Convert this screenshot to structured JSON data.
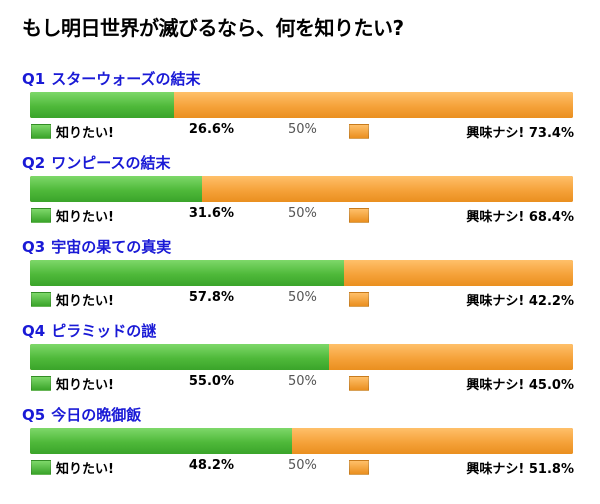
{
  "title": "もし明日世界が滅びるなら、何を知りたい?",
  "legend": {
    "yes_label": "知りたい!",
    "no_label": "興味ナシ!",
    "midpoint": "50%"
  },
  "colors": {
    "yes": "#4fb93a",
    "no": "#f5a23a",
    "question": "#1a1ad6"
  },
  "polls": [
    {
      "qid": "Q1",
      "question": "スターウォーズの結末",
      "yes_text": "26.6%",
      "no_text": "73.4%"
    },
    {
      "qid": "Q2",
      "question": "ワンピースの結末",
      "yes_text": "31.6%",
      "no_text": "68.4%"
    },
    {
      "qid": "Q3",
      "question": "宇宙の果ての真実",
      "yes_text": "57.8%",
      "no_text": "42.2%"
    },
    {
      "qid": "Q4",
      "question": "ピラミッドの謎",
      "yes_text": "55.0%",
      "no_text": "45.0%"
    },
    {
      "qid": "Q5",
      "question": "今日の晩御飯",
      "yes_text": "48.2%",
      "no_text": "51.8%"
    }
  ],
  "chart_data": {
    "type": "bar",
    "orientation": "horizontal-stacked-100",
    "title": "もし明日世界が滅びるなら、何を知りたい?",
    "categories": [
      "スターウォーズの結末",
      "ワンピースの結末",
      "宇宙の果ての真実",
      "ピラミッドの謎",
      "今日の晩御飯"
    ],
    "series": [
      {
        "name": "知りたい!",
        "values": [
          26.6,
          31.6,
          57.8,
          55.0,
          48.2
        ]
      },
      {
        "name": "興味ナシ!",
        "values": [
          73.4,
          68.4,
          42.2,
          45.0,
          51.8
        ]
      }
    ],
    "xlim": [
      0,
      100
    ]
  }
}
